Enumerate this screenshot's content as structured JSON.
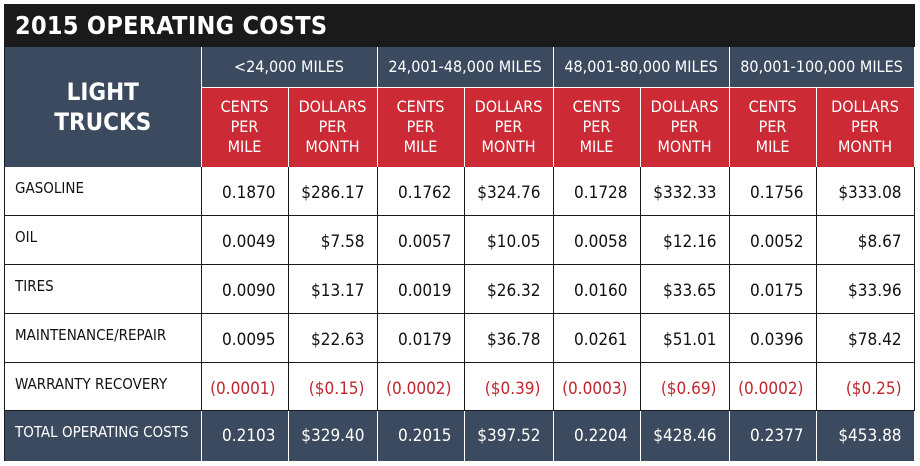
{
  "title": "2015 OPERATING COSTS",
  "chart_data": {
    "type": "table",
    "title": "2015 OPERATING COSTS",
    "row_header": [
      "LIGHT",
      "TRUCKS"
    ],
    "mileage_ranges": [
      "<24,000 MILES",
      "24,001-48,000 MILES",
      "48,001-80,000 MILES",
      "80,001-100,000 MILES"
    ],
    "units": [
      [
        "CENTS",
        "PER",
        "MILE"
      ],
      [
        "DOLLARS",
        "PER",
        "MONTH"
      ]
    ],
    "rows": [
      {
        "label": "GASOLINE",
        "values": [
          "0.1870",
          "$286.17",
          "0.1762",
          "$324.76",
          "0.1728",
          "$332.33",
          "0.1756",
          "$333.08"
        ]
      },
      {
        "label": "OIL",
        "values": [
          "0.0049",
          "$7.58",
          "0.0057",
          "$10.05",
          "0.0058",
          "$12.16",
          "0.0052",
          "$8.67"
        ]
      },
      {
        "label": "TIRES",
        "values": [
          "0.0090",
          "$13.17",
          "0.0019",
          "$26.32",
          "0.0160",
          "$33.65",
          "0.0175",
          "$33.96"
        ]
      },
      {
        "label": "MAINTENANCE/REPAIR",
        "values": [
          "0.0095",
          "$22.63",
          "0.0179",
          "$36.78",
          "0.0261",
          "$51.01",
          "0.0396",
          "$78.42"
        ]
      },
      {
        "label": "WARRANTY RECOVERY",
        "values": [
          "(0.0001)",
          "($0.15)",
          "(0.0002)",
          "($0.39)",
          "(0.0003)",
          "($0.69)",
          "(0.0002)",
          "($0.25)"
        ]
      }
    ],
    "total": {
      "label": "TOTAL OPERATING COSTS",
      "values": [
        "0.2103",
        "$329.40",
        "0.2015",
        "$397.52",
        "0.2204",
        "$428.46",
        "0.2377",
        "$453.88"
      ]
    }
  },
  "colors": {
    "title_bg": "#1a1a1a",
    "header_dark": "#3b4a5e",
    "header_red": "#cc2a35",
    "negative_text": "#c1272d"
  }
}
